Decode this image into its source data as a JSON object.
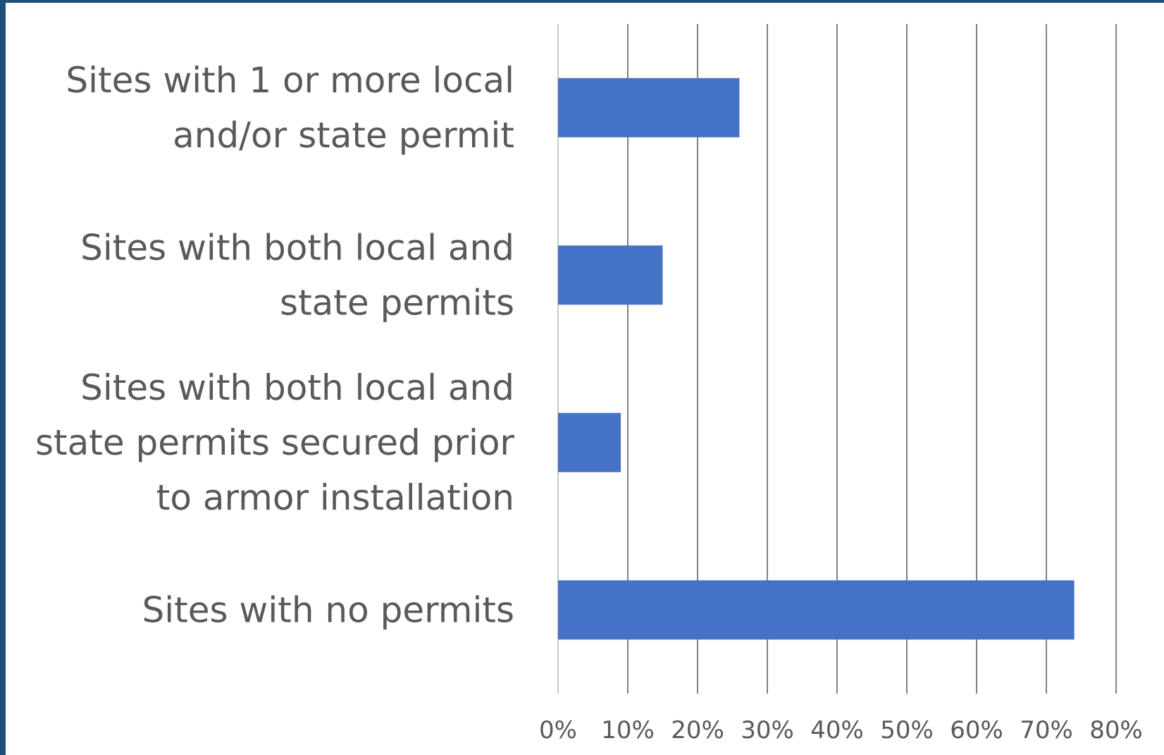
{
  "chart_data": {
    "type": "bar",
    "orientation": "horizontal",
    "categories": [
      "Sites with 1 or more local and/or state permit",
      "Sites with both local and state permits",
      "Sites with both local and state permits secured prior to armor installation",
      "Sites with no permits"
    ],
    "category_label_lines": [
      [
        "Sites with 1 or more local",
        "and/or state permit"
      ],
      [
        "Sites with both local and",
        "state permits"
      ],
      [
        "Sites with both local and",
        "state permits secured prior",
        "to armor installation"
      ],
      [
        "Sites with no permits"
      ]
    ],
    "values": [
      26,
      15,
      9,
      74
    ],
    "xlim": [
      0,
      80
    ],
    "x_ticks": [
      0,
      10,
      20,
      30,
      40,
      50,
      60,
      70,
      80
    ],
    "x_tick_labels": [
      "0%",
      "10%",
      "20%",
      "30%",
      "40%",
      "50%",
      "60%",
      "70%",
      "80%"
    ],
    "title": "",
    "xlabel": "",
    "ylabel": "",
    "grid": true,
    "legend": "none",
    "colors": {
      "bar": "#4472c4",
      "grid": "#808080",
      "text": "#595959",
      "frame": "#1f4e79"
    }
  }
}
